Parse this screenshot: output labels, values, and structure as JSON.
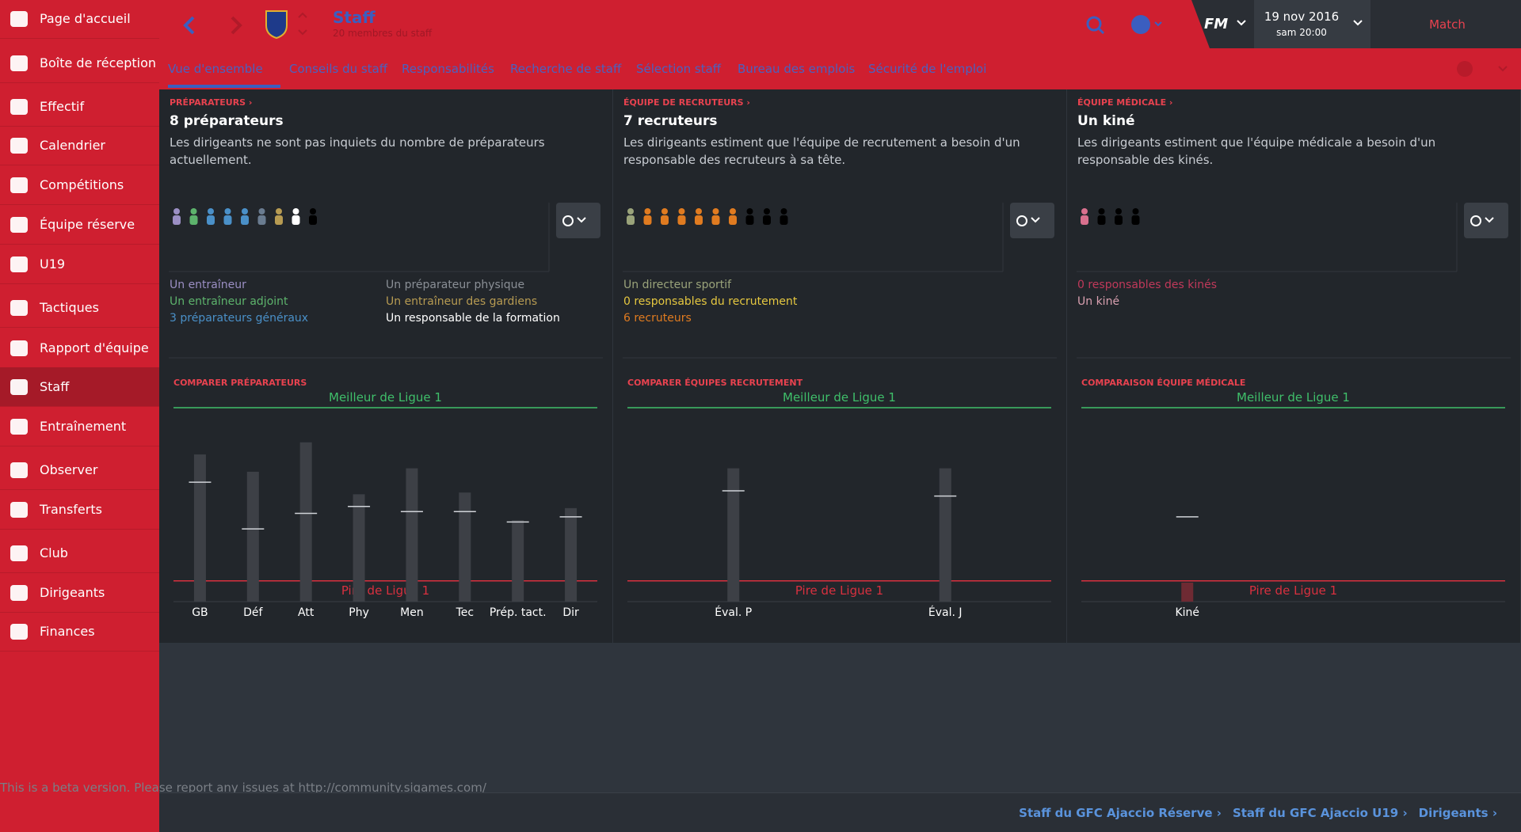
{
  "sidebar": {
    "items": [
      "Page d'accueil",
      "Boîte de réception",
      "Effectif",
      "Calendrier",
      "Compétitions",
      "Équipe réserve",
      "U19",
      "Tactiques",
      "Rapport d'équipe",
      "Staff",
      "Entraînement",
      "Observer",
      "Transferts",
      "Club",
      "Dirigeants",
      "Finances"
    ]
  },
  "header": {
    "title": "Staff",
    "subtitle": "20 membres du staff",
    "logo": "FM",
    "date": "19 nov 2016",
    "time": "sam 20:00",
    "match": "Match"
  },
  "tabs": [
    "Vue d'ensemble",
    "Conseils du staff",
    "Responsabilités",
    "Recherche de staff",
    "Sélection staff",
    "Bureau des emplois",
    "Sécurité de l'emploi"
  ],
  "panels": [
    {
      "section": "PRÉPARATEURS",
      "title": "8 préparateurs",
      "description": "Les dirigeants ne sont pas inquiets du nombre de préparateurs actuellement.",
      "staff_icons": [
        "#9b8fc4",
        "#5db36c",
        "#4a90c8",
        "#4a90c8",
        "#4a90c8",
        "#6a7c90",
        "#b79b52",
        "#ffffff",
        "#000000"
      ],
      "roles": [
        [
          {
            "text": "Un entraîneur",
            "color": "#9b8fc4"
          },
          {
            "text": "Un entraîneur adjoint",
            "color": "#5db36c"
          },
          {
            "text": "3 préparateurs généraux",
            "color": "#4a90c8"
          }
        ],
        [
          {
            "text": "Un préparateur physique",
            "color": "#8a8f96"
          },
          {
            "text": "Un entraîneur des gardiens",
            "color": "#b79b52"
          },
          {
            "text": "Un responsable de la formation",
            "color": "#ffffff"
          }
        ]
      ],
      "compare_title": "COMPARER PRÉPARATEURS",
      "chart": {
        "type": "bar",
        "color": "#3d4046",
        "categories": [
          "GB",
          "Déf",
          "Att",
          "Phy",
          "Men",
          "Tec",
          "Prép. tact.",
          "Dir"
        ],
        "values": [
          73,
          63,
          80,
          50,
          65,
          51,
          35,
          42
        ],
        "markers": [
          57,
          30,
          39,
          43,
          40,
          40,
          34,
          37
        ],
        "ylim": [
          -12,
          100
        ],
        "yticks": [
          {
            "value": 0,
            "label": "Pire de Ligue 1"
          },
          {
            "value": 100,
            "label": "Meilleur de Ligue 1"
          }
        ]
      }
    },
    {
      "section": "ÉQUIPE DE RECRUTEURS",
      "title": "7 recruteurs",
      "description": "Les dirigeants estiment que l'équipe de recrutement a besoin d'un responsable des recruteurs à sa tête.",
      "staff_icons": [
        "#9aa37a",
        "#e07b20",
        "#e07b20",
        "#e07b20",
        "#e07b20",
        "#e07b20",
        "#e07b20",
        "#000000",
        "#000000",
        "#000000"
      ],
      "roles": [
        [
          {
            "text": "Un directeur sportif",
            "color": "#9aa37a"
          },
          {
            "text": "0 responsables du recrutement",
            "color": "#e6c840"
          },
          {
            "text": "6 recruteurs",
            "color": "#e07b20"
          }
        ]
      ],
      "compare_title": "COMPARER ÉQUIPES RECRUTEMENT",
      "chart": {
        "type": "bar",
        "color": "#3d4046",
        "categories": [
          "Éval. P",
          "Éval. J"
        ],
        "values": [
          65,
          65
        ],
        "markers": [
          52,
          49
        ],
        "ylim": [
          -12,
          100
        ],
        "yticks": [
          {
            "value": 0,
            "label": "Pire de Ligue 1"
          },
          {
            "value": 100,
            "label": "Meilleur de Ligue 1"
          }
        ]
      }
    },
    {
      "section": "ÉQUIPE MÉDICALE",
      "title": "Un kiné",
      "description": "Les dirigeants estiment que l'équipe médicale a besoin d'un responsable des kinés.",
      "staff_icons": [
        "#d9708e",
        "#000000",
        "#000000",
        "#000000"
      ],
      "roles": [
        [
          {
            "text": "0 responsables des kinés",
            "color": "#c0395a"
          },
          {
            "text": "Un kiné",
            "color": "#d9a0b0"
          }
        ]
      ],
      "compare_title": "COMPARAISON ÉQUIPE MÉDICALE",
      "chart": {
        "type": "bar",
        "color": "#6e2a33",
        "categories": [
          "Kiné"
        ],
        "values": [
          -1
        ],
        "markers": [
          37
        ],
        "ylim": [
          -12,
          100
        ],
        "yticks": [
          {
            "value": 0,
            "label": "Pire de Ligue 1"
          },
          {
            "value": 100,
            "label": "Meilleur de Ligue 1"
          }
        ]
      }
    }
  ],
  "footer": {
    "beta": "This is a beta version. Please report any issues at http://community.sigames.com/",
    "links": [
      "Staff du GFC Ajaccio Réserve",
      "Staff du GFC Ajaccio U19",
      "Dirigeants"
    ]
  }
}
